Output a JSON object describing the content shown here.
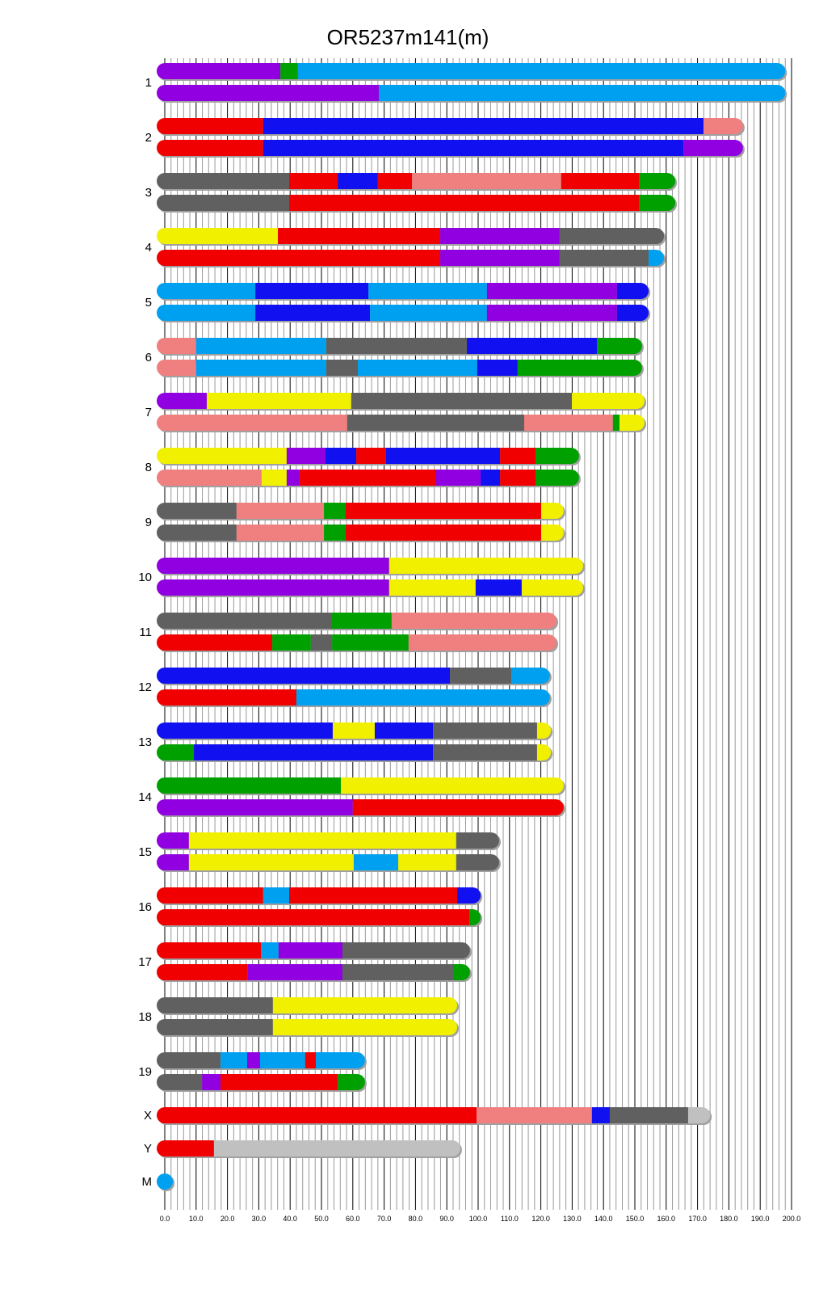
{
  "chart_data": {
    "type": "chromosome-painting",
    "title": "OR5237m141(m)",
    "xlim": [
      0,
      200
    ],
    "x_major_step": 10,
    "x_minor_step": 2,
    "tick_labels": [
      "0.0",
      "10.0",
      "20.0",
      "30.0",
      "40.0",
      "50.0",
      "60.0",
      "70.0",
      "80.0",
      "90.0",
      "100.0",
      "110.0",
      "120.0",
      "130.0",
      "140.0",
      "150.0",
      "160.0",
      "170.0",
      "180.0",
      "190.0",
      "200.0"
    ],
    "colors": {
      "purple": "#9000e0",
      "green": "#00a000",
      "cyan": "#00a0f0",
      "red": "#f00000",
      "blue": "#1010f0",
      "salmon": "#f08080",
      "gray": "#606060",
      "yellow": "#f0f000",
      "lightgray": "#c0c0c0"
    },
    "chromosomes": [
      {
        "name": "1",
        "haplotypes": [
          [
            [
              0,
              36.9,
              "purple"
            ],
            [
              36.9,
              42.5,
              "green"
            ],
            [
              42.5,
              198,
              "cyan"
            ]
          ],
          [
            [
              0,
              68.3,
              "purple"
            ],
            [
              68.3,
              198,
              "cyan"
            ]
          ]
        ]
      },
      {
        "name": "2",
        "haplotypes": [
          [
            [
              0,
              31.4,
              "red"
            ],
            [
              31.4,
              171.9,
              "blue"
            ],
            [
              171.9,
              184.5,
              "salmon"
            ]
          ],
          [
            [
              0,
              31.4,
              "red"
            ],
            [
              31.4,
              165.5,
              "blue"
            ],
            [
              165.5,
              184.5,
              "purple"
            ]
          ]
        ]
      },
      {
        "name": "3",
        "haplotypes": [
          [
            [
              0,
              39.7,
              "gray"
            ],
            [
              39.7,
              55.2,
              "red"
            ],
            [
              55.2,
              68,
              "blue"
            ],
            [
              68,
              78.9,
              "red"
            ],
            [
              78.9,
              126.5,
              "salmon"
            ],
            [
              126.5,
              151.3,
              "red"
            ],
            [
              151.3,
              162.9,
              "green"
            ]
          ],
          [
            [
              0,
              39.7,
              "gray"
            ],
            [
              39.7,
              151.3,
              "red"
            ],
            [
              151.3,
              162.9,
              "green"
            ]
          ]
        ]
      },
      {
        "name": "4",
        "haplotypes": [
          [
            [
              0,
              36.1,
              "yellow"
            ],
            [
              36.1,
              87.9,
              "red"
            ],
            [
              87.9,
              126,
              "purple"
            ],
            [
              126,
              159.3,
              "gray"
            ]
          ],
          [
            [
              0,
              87.9,
              "red"
            ],
            [
              87.9,
              126,
              "purple"
            ],
            [
              126,
              154.4,
              "gray"
            ],
            [
              154.4,
              159.3,
              "cyan"
            ]
          ]
        ]
      },
      {
        "name": "5",
        "haplotypes": [
          [
            [
              0,
              28.9,
              "cyan"
            ],
            [
              28.9,
              65,
              "blue"
            ],
            [
              65,
              102.8,
              "cyan"
            ],
            [
              102.8,
              144.3,
              "purple"
            ],
            [
              144.3,
              154.4,
              "blue"
            ]
          ],
          [
            [
              0,
              28.9,
              "cyan"
            ],
            [
              28.9,
              65.5,
              "blue"
            ],
            [
              65.5,
              102.8,
              "cyan"
            ],
            [
              102.8,
              144.3,
              "purple"
            ],
            [
              144.3,
              154.4,
              "blue"
            ]
          ]
        ]
      },
      {
        "name": "6",
        "haplotypes": [
          [
            [
              0,
              10,
              "salmon"
            ],
            [
              10,
              51.5,
              "cyan"
            ],
            [
              51.5,
              96.4,
              "gray"
            ],
            [
              96.4,
              137.9,
              "blue"
            ],
            [
              137.9,
              152.3,
              "green"
            ]
          ],
          [
            [
              0,
              10,
              "salmon"
            ],
            [
              10,
              51.5,
              "cyan"
            ],
            [
              51.5,
              61.6,
              "gray"
            ],
            [
              61.6,
              99.7,
              "cyan"
            ],
            [
              99.7,
              112.6,
              "blue"
            ],
            [
              112.6,
              152.3,
              "green"
            ]
          ]
        ]
      },
      {
        "name": "7",
        "haplotypes": [
          [
            [
              0,
              13.4,
              "purple"
            ],
            [
              13.4,
              59.5,
              "yellow"
            ],
            [
              59.5,
              129.9,
              "gray"
            ],
            [
              129.9,
              153.1,
              "yellow"
            ]
          ],
          [
            [
              0,
              58.2,
              "salmon"
            ],
            [
              58.2,
              114.7,
              "gray"
            ],
            [
              114.7,
              143,
              "salmon"
            ],
            [
              143,
              145.1,
              "green"
            ],
            [
              145.1,
              153.1,
              "yellow"
            ]
          ]
        ]
      },
      {
        "name": "8",
        "haplotypes": [
          [
            [
              0,
              38.9,
              "yellow"
            ],
            [
              38.9,
              51.3,
              "purple"
            ],
            [
              51.3,
              61.1,
              "blue"
            ],
            [
              61.1,
              70.6,
              "red"
            ],
            [
              70.6,
              107,
              "blue"
            ],
            [
              107,
              118.3,
              "red"
            ],
            [
              118.3,
              132.2,
              "green"
            ]
          ],
          [
            [
              0,
              30.9,
              "salmon"
            ],
            [
              30.9,
              38.9,
              "yellow"
            ],
            [
              38.9,
              43,
              "purple"
            ],
            [
              43,
              86.6,
              "red"
            ],
            [
              86.6,
              100.8,
              "purple"
            ],
            [
              100.8,
              107,
              "blue"
            ],
            [
              107,
              118.3,
              "red"
            ],
            [
              118.3,
              132.2,
              "green"
            ]
          ]
        ]
      },
      {
        "name": "9",
        "haplotypes": [
          [
            [
              0,
              22.9,
              "gray"
            ],
            [
              22.9,
              50.8,
              "salmon"
            ],
            [
              50.8,
              57.7,
              "green"
            ],
            [
              57.7,
              120.1,
              "red"
            ],
            [
              120.1,
              127.3,
              "yellow"
            ]
          ],
          [
            [
              0,
              22.9,
              "gray"
            ],
            [
              22.9,
              50.8,
              "salmon"
            ],
            [
              50.8,
              57.7,
              "green"
            ],
            [
              57.7,
              120.1,
              "red"
            ],
            [
              120.1,
              127.3,
              "yellow"
            ]
          ]
        ]
      },
      {
        "name": "10",
        "haplotypes": [
          [
            [
              0,
              71.6,
              "purple"
            ],
            [
              71.6,
              133.5,
              "yellow"
            ]
          ],
          [
            [
              0,
              71.6,
              "purple"
            ],
            [
              71.6,
              99.2,
              "yellow"
            ],
            [
              99.2,
              113.9,
              "blue"
            ],
            [
              113.9,
              133.5,
              "yellow"
            ]
          ]
        ]
      },
      {
        "name": "11",
        "haplotypes": [
          [
            [
              0,
              53.1,
              "gray"
            ],
            [
              53.1,
              72.4,
              "green"
            ],
            [
              72.4,
              125,
              "salmon"
            ]
          ],
          [
            [
              0,
              34.3,
              "red"
            ],
            [
              34.3,
              46.6,
              "green"
            ],
            [
              46.6,
              53.4,
              "gray"
            ],
            [
              53.4,
              77.8,
              "green"
            ],
            [
              77.8,
              125,
              "salmon"
            ]
          ]
        ]
      },
      {
        "name": "12",
        "haplotypes": [
          [
            [
              0,
              91,
              "blue"
            ],
            [
              91,
              110.6,
              "gray"
            ],
            [
              110.6,
              122.9,
              "cyan"
            ]
          ],
          [
            [
              0,
              42,
              "red"
            ],
            [
              42,
              122.9,
              "cyan"
            ]
          ]
        ]
      },
      {
        "name": "13",
        "haplotypes": [
          [
            [
              0,
              53.6,
              "blue"
            ],
            [
              53.6,
              67,
              "yellow"
            ],
            [
              67,
              85.6,
              "blue"
            ],
            [
              85.6,
              118.8,
              "gray"
            ],
            [
              118.8,
              123.2,
              "yellow"
            ]
          ],
          [
            [
              0,
              9.3,
              "green"
            ],
            [
              9.3,
              85.6,
              "blue"
            ],
            [
              85.6,
              118.8,
              "gray"
            ],
            [
              118.8,
              123.2,
              "yellow"
            ]
          ]
        ]
      },
      {
        "name": "14",
        "haplotypes": [
          [
            [
              0,
              56.2,
              "green"
            ],
            [
              56.2,
              127.3,
              "yellow"
            ]
          ],
          [
            [
              0,
              60,
              "purple"
            ],
            [
              60,
              127.3,
              "red"
            ]
          ]
        ]
      },
      {
        "name": "15",
        "haplotypes": [
          [
            [
              0,
              7.7,
              "purple"
            ],
            [
              7.7,
              93,
              "yellow"
            ],
            [
              93,
              106.7,
              "gray"
            ]
          ],
          [
            [
              0,
              7.7,
              "purple"
            ],
            [
              7.7,
              60.3,
              "yellow"
            ],
            [
              60.3,
              74.5,
              "cyan"
            ],
            [
              74.5,
              93,
              "yellow"
            ],
            [
              93,
              106.7,
              "gray"
            ]
          ]
        ]
      },
      {
        "name": "16",
        "haplotypes": [
          [
            [
              0,
              31.4,
              "red"
            ],
            [
              31.4,
              39.7,
              "cyan"
            ],
            [
              39.7,
              93.3,
              "red"
            ],
            [
              93.3,
              100.8,
              "blue"
            ]
          ],
          [
            [
              0,
              97.2,
              "red"
            ],
            [
              97.2,
              100.8,
              "green"
            ]
          ]
        ]
      },
      {
        "name": "17",
        "haplotypes": [
          [
            [
              0,
              30.7,
              "red"
            ],
            [
              30.7,
              36.3,
              "cyan"
            ],
            [
              36.3,
              56.7,
              "purple"
            ],
            [
              56.7,
              97.4,
              "gray"
            ]
          ],
          [
            [
              0,
              26.5,
              "red"
            ],
            [
              26.5,
              56.7,
              "purple"
            ],
            [
              56.7,
              92,
              "gray"
            ],
            [
              92,
              97.4,
              "green"
            ]
          ]
        ]
      },
      {
        "name": "18",
        "haplotypes": [
          [
            [
              0,
              34.5,
              "gray"
            ],
            [
              34.5,
              93.3,
              "yellow"
            ]
          ],
          [
            [
              0,
              34.5,
              "gray"
            ],
            [
              34.5,
              93.3,
              "yellow"
            ]
          ]
        ]
      },
      {
        "name": "19",
        "haplotypes": [
          [
            [
              0,
              17.8,
              "gray"
            ],
            [
              17.8,
              26.3,
              "cyan"
            ],
            [
              26.3,
              30.4,
              "purple"
            ],
            [
              30.4,
              44.8,
              "cyan"
            ],
            [
              44.8,
              48.2,
              "red"
            ],
            [
              48.2,
              63.9,
              "cyan"
            ]
          ],
          [
            [
              0,
              11.9,
              "gray"
            ],
            [
              11.9,
              17.8,
              "purple"
            ],
            [
              17.8,
              55.2,
              "red"
            ],
            [
              55.2,
              63.9,
              "green"
            ]
          ]
        ]
      },
      {
        "name": "X",
        "haplotypes": [
          [
            [
              0,
              99.5,
              "red"
            ],
            [
              99.5,
              136.3,
              "salmon"
            ],
            [
              136.3,
              142,
              "blue"
            ],
            [
              142,
              167,
              "gray"
            ],
            [
              167,
              174,
              "lightgray"
            ]
          ]
        ]
      },
      {
        "name": "Y",
        "haplotypes": [
          [
            [
              0,
              15.7,
              "red"
            ],
            [
              15.7,
              94.3,
              "lightgray"
            ]
          ]
        ]
      },
      {
        "name": "M",
        "haplotypes": [
          [
            [
              0,
              2.6,
              "cyan"
            ]
          ]
        ]
      }
    ]
  }
}
